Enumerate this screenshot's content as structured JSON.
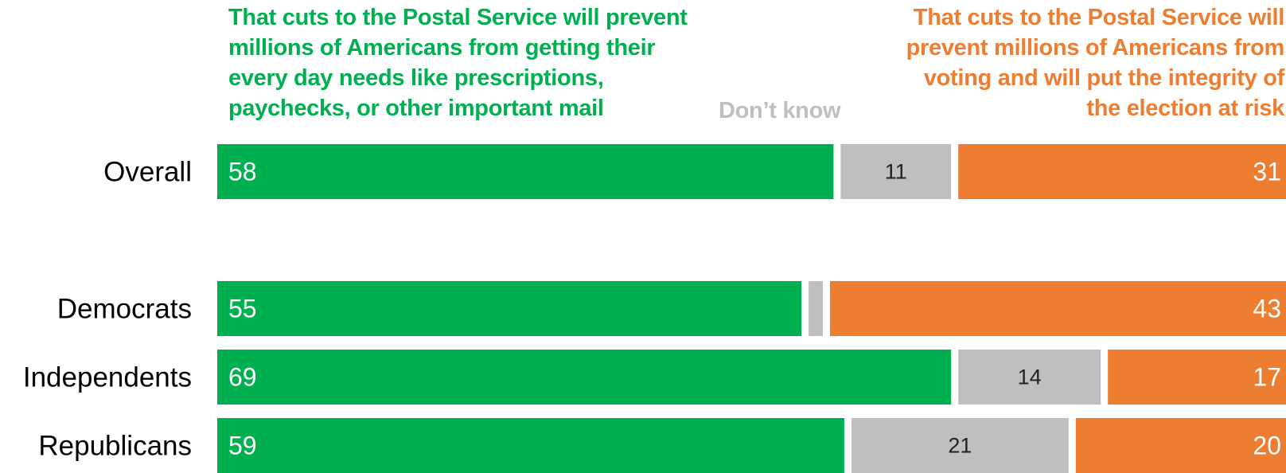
{
  "chart_data": {
    "type": "bar",
    "orientation": "horizontal",
    "stacked": true,
    "categories": [
      "Overall",
      "Democrats",
      "Independents",
      "Republicans"
    ],
    "series": [
      {
        "name": "That cuts to the Postal Service will prevent millions of Americans from getting their every day needs like prescriptions, paychecks, or other important mail",
        "values": [
          58,
          55,
          69,
          59
        ],
        "color": "#00b050"
      },
      {
        "name": "Don’t know",
        "values": [
          11,
          2,
          14,
          21
        ],
        "color": "#bfbfbf"
      },
      {
        "name": "That cuts to the Postal Service will prevent millions of Americans from voting and will put the integrity of the election at risk",
        "values": [
          31,
          43,
          17,
          20
        ],
        "color": "#ed7d31"
      }
    ],
    "value_labels": [
      [
        "58",
        "11",
        "31"
      ],
      [
        "55",
        "",
        "43"
      ],
      [
        "69",
        "14",
        "17"
      ],
      [
        "59",
        "21",
        "20"
      ]
    ],
    "legend_lines": {
      "left": [
        "That cuts to the Postal Service will prevent",
        "millions of Americans from getting their",
        "every day needs like prescriptions,",
        "paychecks, or other important mail"
      ],
      "middle": [
        "Don’t know"
      ],
      "right": [
        "That cuts to the Postal Service will",
        "prevent millions of Americans from",
        "voting and will put the integrity of",
        "the election at risk"
      ]
    },
    "xlim": [
      0,
      100
    ],
    "grid": false,
    "legend_placement": "top"
  }
}
